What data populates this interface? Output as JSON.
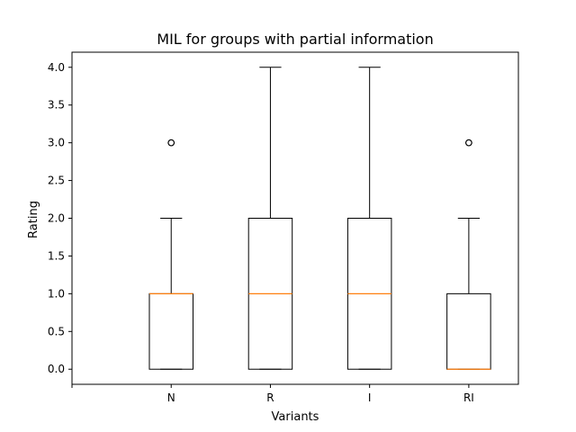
{
  "chart_data": {
    "type": "boxplot",
    "title": "MIL for groups with partial information",
    "xlabel": "Variants",
    "ylabel": "Rating",
    "ylim": [
      -0.2,
      4.2
    ],
    "yticks": [
      "0.0",
      "0.5",
      "1.0",
      "1.5",
      "2.0",
      "2.5",
      "3.0",
      "3.5",
      "4.0"
    ],
    "xlim": [
      0,
      4.5
    ],
    "xticks": [
      {
        "x": 0,
        "label": ""
      },
      {
        "x": 1,
        "label": "N"
      },
      {
        "x": 2,
        "label": "R"
      },
      {
        "x": 3,
        "label": "I"
      },
      {
        "x": 4,
        "label": "RI"
      }
    ],
    "grid": false,
    "colors": {
      "box": "#000000",
      "median": "#ff7f0e"
    },
    "boxes": [
      {
        "category": "N",
        "x": 1,
        "whisker_low": 0,
        "q1": 0,
        "median": 1,
        "q3": 1,
        "whisker_high": 2,
        "outliers": [
          3
        ]
      },
      {
        "category": "R",
        "x": 2,
        "whisker_low": 0,
        "q1": 0,
        "median": 1,
        "q3": 2,
        "whisker_high": 4,
        "outliers": []
      },
      {
        "category": "I",
        "x": 3,
        "whisker_low": 0,
        "q1": 0,
        "median": 1,
        "q3": 2,
        "whisker_high": 4,
        "outliers": []
      },
      {
        "category": "RI",
        "x": 4,
        "whisker_low": 0,
        "q1": 0,
        "median": 0,
        "q3": 1,
        "whisker_high": 2,
        "outliers": [
          3
        ]
      }
    ]
  }
}
